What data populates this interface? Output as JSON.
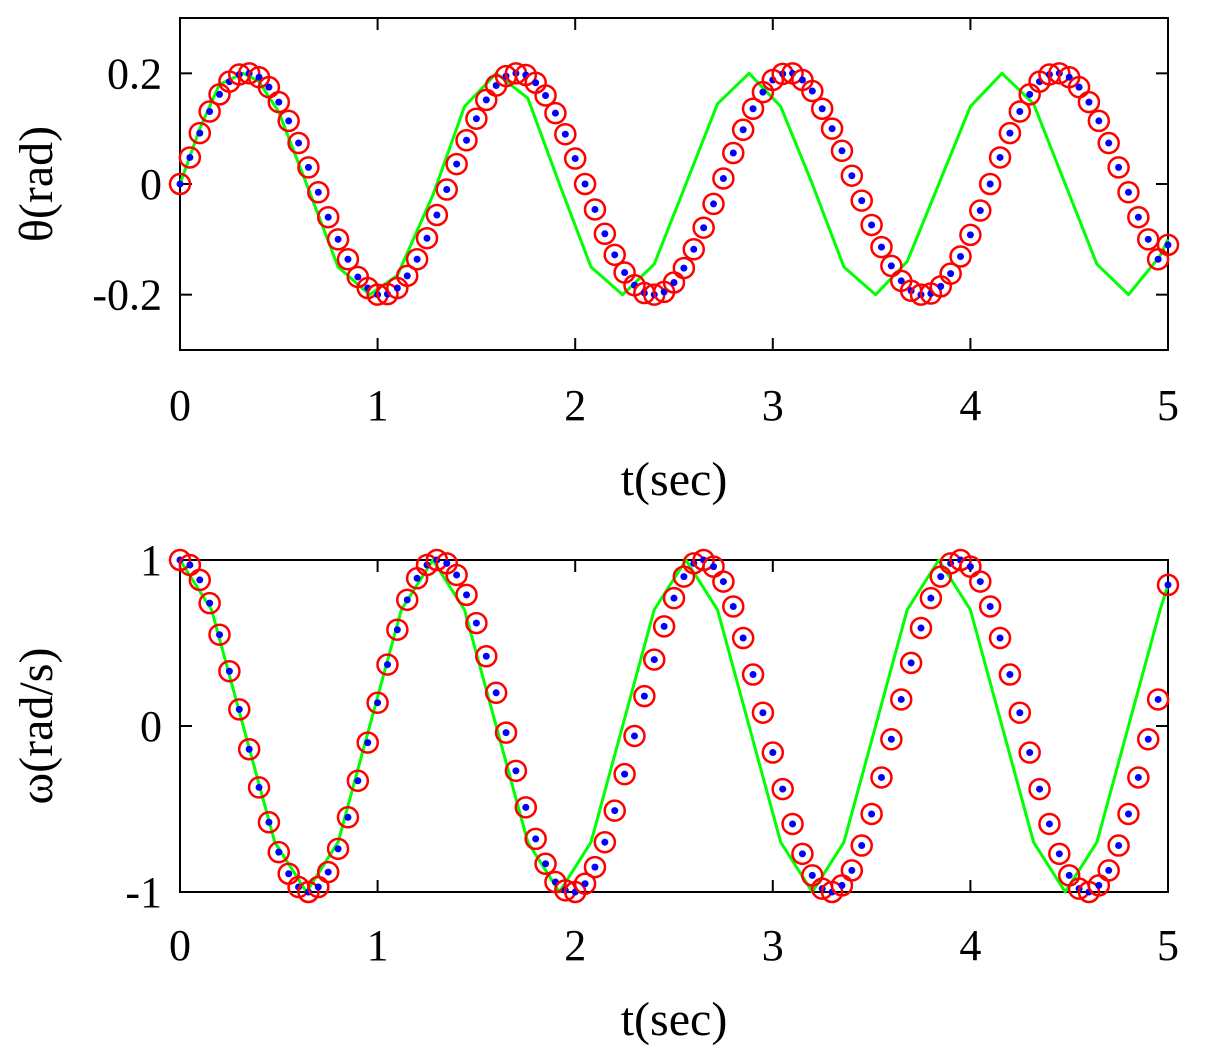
{
  "colors": {
    "background": "#ffffff",
    "axes": "#000000",
    "marker_circle": "#ff0000",
    "marker_dot": "#0000ff",
    "curve": "#00ff00"
  },
  "chart_data": [
    {
      "type": "line",
      "name": "theta-plot",
      "xlabel": "t(sec)",
      "ylabel": "θ(rad)",
      "xlim": [
        0,
        5
      ],
      "ylim": [
        -0.3,
        0.3
      ],
      "xticks": [
        0,
        1,
        2,
        3,
        4,
        5
      ],
      "xtick_labels": [
        "0",
        "1",
        "2",
        "3",
        "4",
        "5"
      ],
      "yticks": [
        -0.2,
        0,
        0.2
      ],
      "ytick_labels": [
        "-0.2",
        "0",
        "0.2"
      ],
      "grid": false,
      "box": true,
      "series": [
        {
          "style": "solid green line",
          "x": [
            0,
            0.1,
            0.2,
            0.32,
            0.4,
            0.5,
            0.64,
            0.8,
            0.96,
            1.1,
            1.28,
            1.44,
            1.6,
            1.76,
            1.92,
            2.08,
            2.24,
            2.4,
            2.56,
            2.72,
            2.88,
            3.04,
            3.2,
            3.36,
            3.52,
            3.68,
            3.84,
            4.0,
            4.16,
            4.32,
            4.48,
            4.64,
            4.8,
            4.96,
            5.0
          ],
          "y": [
            0,
            0.1,
            0.18,
            0.2,
            0.185,
            0.13,
            0.0,
            -0.15,
            -0.2,
            -0.165,
            -0.02,
            0.14,
            0.2,
            0.155,
            0.0,
            -0.15,
            -0.2,
            -0.145,
            0.0,
            0.145,
            0.2,
            0.14,
            0.0,
            -0.15,
            -0.2,
            -0.14,
            0.0,
            0.14,
            0.2,
            0.145,
            0.0,
            -0.145,
            -0.2,
            -0.13,
            -0.1
          ]
        },
        {
          "style": "red open circles with blue dot markers",
          "x": [
            0,
            0.05,
            0.1,
            0.15,
            0.2,
            0.25,
            0.3,
            0.35,
            0.4,
            0.45,
            0.5,
            0.55,
            0.6,
            0.65,
            0.7,
            0.75,
            0.8,
            0.85,
            0.9,
            0.95,
            1.0,
            1.05,
            1.1,
            1.15,
            1.2,
            1.25,
            1.3,
            1.35,
            1.4,
            1.45,
            1.5,
            1.55,
            1.6,
            1.65,
            1.7,
            1.75,
            1.8,
            1.85,
            1.9,
            1.95,
            2.0,
            2.05,
            2.1,
            2.15,
            2.2,
            2.25,
            2.3,
            2.35,
            2.4,
            2.45,
            2.5,
            2.55,
            2.6,
            2.65,
            2.7,
            2.75,
            2.8,
            2.85,
            2.9,
            2.95,
            3.0,
            3.05,
            3.1,
            3.15,
            3.2,
            3.25,
            3.3,
            3.35,
            3.4,
            3.45,
            3.5,
            3.55,
            3.6,
            3.65,
            3.7,
            3.75,
            3.8,
            3.85,
            3.9,
            3.95,
            4.0,
            4.05,
            4.1,
            4.15,
            4.2,
            4.25,
            4.3,
            4.35,
            4.4,
            4.45,
            4.5,
            4.55,
            4.6,
            4.65,
            4.7,
            4.75,
            4.8,
            4.85,
            4.9,
            4.95,
            5.0
          ],
          "y": [
            0,
            0.048,
            0.092,
            0.131,
            0.162,
            0.185,
            0.198,
            0.2,
            0.193,
            0.175,
            0.148,
            0.114,
            0.074,
            0.03,
            -0.015,
            -0.06,
            -0.1,
            -0.136,
            -0.168,
            -0.188,
            -0.2,
            -0.199,
            -0.188,
            -0.166,
            -0.136,
            -0.098,
            -0.056,
            -0.01,
            0.036,
            0.079,
            0.118,
            0.152,
            0.178,
            0.195,
            0.2,
            0.197,
            0.183,
            0.16,
            0.128,
            0.09,
            0.046,
            0.0,
            -0.046,
            -0.09,
            -0.128,
            -0.16,
            -0.183,
            -0.197,
            -0.2,
            -0.195,
            -0.178,
            -0.152,
            -0.118,
            -0.079,
            -0.036,
            0.01,
            0.056,
            0.098,
            0.136,
            0.166,
            0.188,
            0.199,
            0.2,
            0.188,
            0.168,
            0.136,
            0.1,
            0.06,
            0.015,
            -0.03,
            -0.074,
            -0.114,
            -0.148,
            -0.175,
            -0.193,
            -0.2,
            -0.198,
            -0.185,
            -0.162,
            -0.131,
            -0.092,
            -0.048,
            0.0,
            0.048,
            0.092,
            0.131,
            0.162,
            0.185,
            0.198,
            0.2,
            0.193,
            0.175,
            0.148,
            0.114,
            0.074,
            0.03,
            -0.015,
            -0.06,
            -0.1,
            -0.136,
            -0.11
          ]
        }
      ]
    },
    {
      "type": "line",
      "name": "omega-plot",
      "xlabel": "t(sec)",
      "ylabel": "ω(rad/s)",
      "xlim": [
        0,
        5
      ],
      "ylim": [
        -1,
        1
      ],
      "xticks": [
        0,
        1,
        2,
        3,
        4,
        5
      ],
      "xtick_labels": [
        "0",
        "1",
        "2",
        "3",
        "4",
        "5"
      ],
      "yticks": [
        -1,
        0,
        1
      ],
      "ytick_labels": [
        "-1",
        "0",
        "1"
      ],
      "grid": false,
      "box": true,
      "series": [
        {
          "style": "solid green line",
          "x": [
            0,
            0.16,
            0.32,
            0.48,
            0.64,
            0.8,
            0.96,
            1.12,
            1.28,
            1.44,
            1.6,
            1.76,
            1.92,
            2.08,
            2.24,
            2.4,
            2.56,
            2.72,
            2.88,
            3.04,
            3.2,
            3.36,
            3.52,
            3.68,
            3.84,
            4.0,
            4.16,
            4.32,
            4.48,
            4.64,
            4.8,
            4.96,
            5.0
          ],
          "y": [
            1,
            0.7,
            0.0,
            -0.7,
            -1,
            -0.7,
            0.0,
            0.7,
            1,
            0.7,
            0.0,
            -0.7,
            -1,
            -0.7,
            0.0,
            0.7,
            1,
            0.7,
            0.0,
            -0.7,
            -1,
            -0.7,
            0.0,
            0.7,
            1,
            0.7,
            0.0,
            -0.7,
            -1,
            -0.7,
            0.0,
            0.7,
            0.85
          ]
        },
        {
          "style": "red open circles with blue dot markers",
          "x": [
            0,
            0.05,
            0.1,
            0.15,
            0.2,
            0.25,
            0.3,
            0.35,
            0.4,
            0.45,
            0.5,
            0.55,
            0.6,
            0.65,
            0.7,
            0.75,
            0.8,
            0.85,
            0.9,
            0.95,
            1.0,
            1.05,
            1.1,
            1.15,
            1.2,
            1.25,
            1.3,
            1.35,
            1.4,
            1.45,
            1.5,
            1.55,
            1.6,
            1.65,
            1.7,
            1.75,
            1.8,
            1.85,
            1.9,
            1.95,
            2.0,
            2.05,
            2.1,
            2.15,
            2.2,
            2.25,
            2.3,
            2.35,
            2.4,
            2.45,
            2.5,
            2.55,
            2.6,
            2.65,
            2.7,
            2.75,
            2.8,
            2.85,
            2.9,
            2.95,
            3.0,
            3.05,
            3.1,
            3.15,
            3.2,
            3.25,
            3.3,
            3.35,
            3.4,
            3.45,
            3.5,
            3.55,
            3.6,
            3.65,
            3.7,
            3.75,
            3.8,
            3.85,
            3.9,
            3.95,
            4.0,
            4.05,
            4.1,
            4.15,
            4.2,
            4.25,
            4.3,
            4.35,
            4.4,
            4.45,
            4.5,
            4.55,
            4.6,
            4.65,
            4.7,
            4.75,
            4.8,
            4.85,
            4.9,
            4.95,
            5.0
          ],
          "y": [
            1.0,
            0.97,
            0.88,
            0.74,
            0.55,
            0.33,
            0.1,
            -0.14,
            -0.37,
            -0.58,
            -0.76,
            -0.89,
            -0.97,
            -1.0,
            -0.97,
            -0.88,
            -0.74,
            -0.55,
            -0.33,
            -0.1,
            0.14,
            0.37,
            0.58,
            0.76,
            0.89,
            0.97,
            1.0,
            0.98,
            0.91,
            0.79,
            0.62,
            0.42,
            0.2,
            -0.04,
            -0.27,
            -0.49,
            -0.68,
            -0.83,
            -0.94,
            -0.99,
            -1.0,
            -0.95,
            -0.85,
            -0.7,
            -0.51,
            -0.29,
            -0.06,
            0.18,
            0.4,
            0.6,
            0.77,
            0.9,
            0.98,
            1.0,
            0.96,
            0.87,
            0.72,
            0.53,
            0.31,
            0.08,
            -0.16,
            -0.38,
            -0.59,
            -0.77,
            -0.9,
            -0.98,
            -1.0,
            -0.96,
            -0.87,
            -0.72,
            -0.53,
            -0.31,
            -0.08,
            0.16,
            0.38,
            0.59,
            0.77,
            0.9,
            0.98,
            1.0,
            0.96,
            0.87,
            0.72,
            0.53,
            0.31,
            0.08,
            -0.16,
            -0.38,
            -0.59,
            -0.77,
            -0.9,
            -0.98,
            -1.0,
            -0.96,
            -0.87,
            -0.72,
            -0.53,
            -0.31,
            -0.08,
            0.16,
            0.85
          ]
        }
      ]
    }
  ]
}
